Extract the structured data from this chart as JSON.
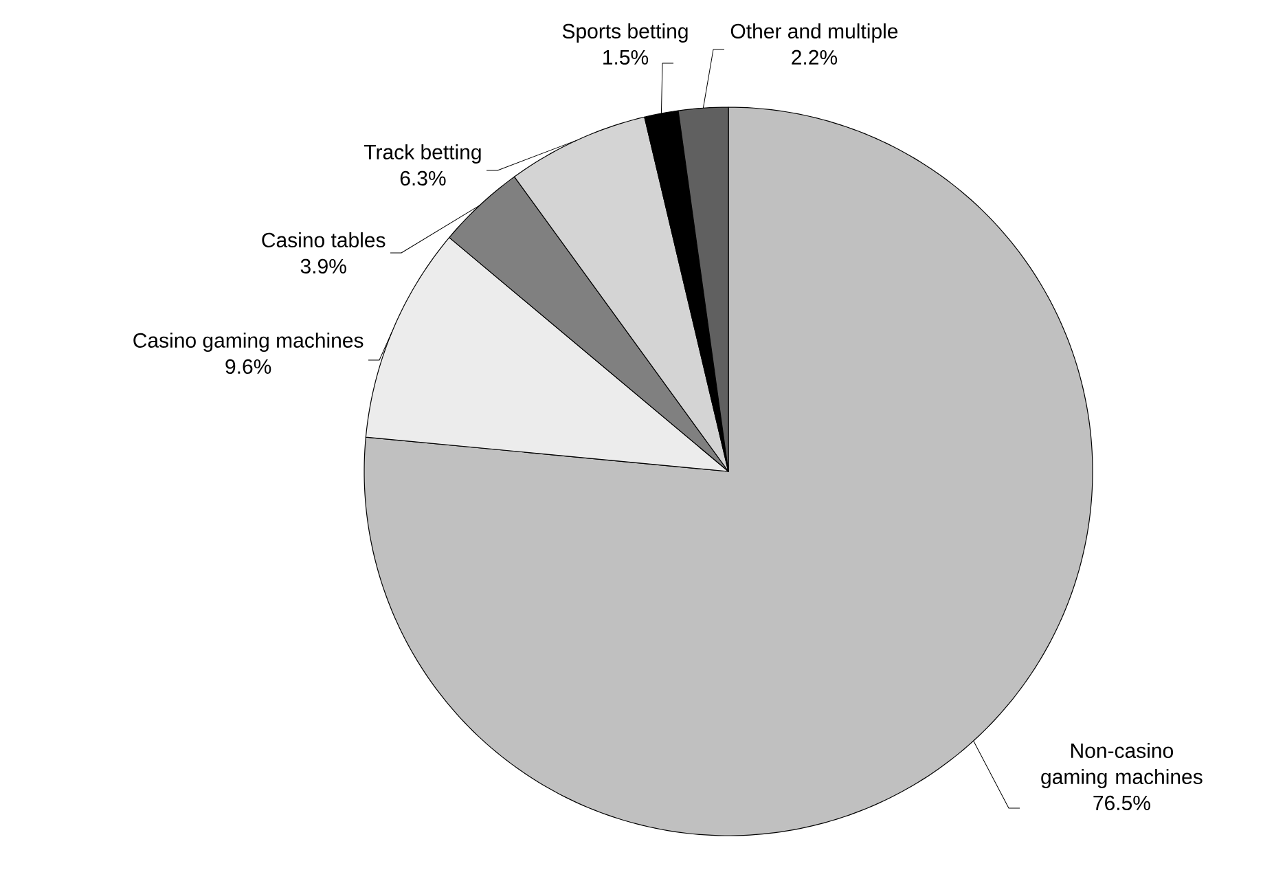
{
  "chart_data": {
    "type": "pie",
    "categories": [
      "Non-casino gaming machines",
      "Casino gaming machines",
      "Casino tables",
      "Track betting",
      "Sports betting",
      "Other and multiple"
    ],
    "values": [
      76.5,
      9.6,
      3.9,
      6.3,
      1.5,
      2.2
    ],
    "colors": [
      "#c0c0c0",
      "#ececec",
      "#808080",
      "#d4d4d4",
      "#000000",
      "#606060"
    ],
    "value_labels": [
      "76.5%",
      "9.6%",
      "3.9%",
      "6.3%",
      "1.5%",
      "2.2%"
    ]
  }
}
